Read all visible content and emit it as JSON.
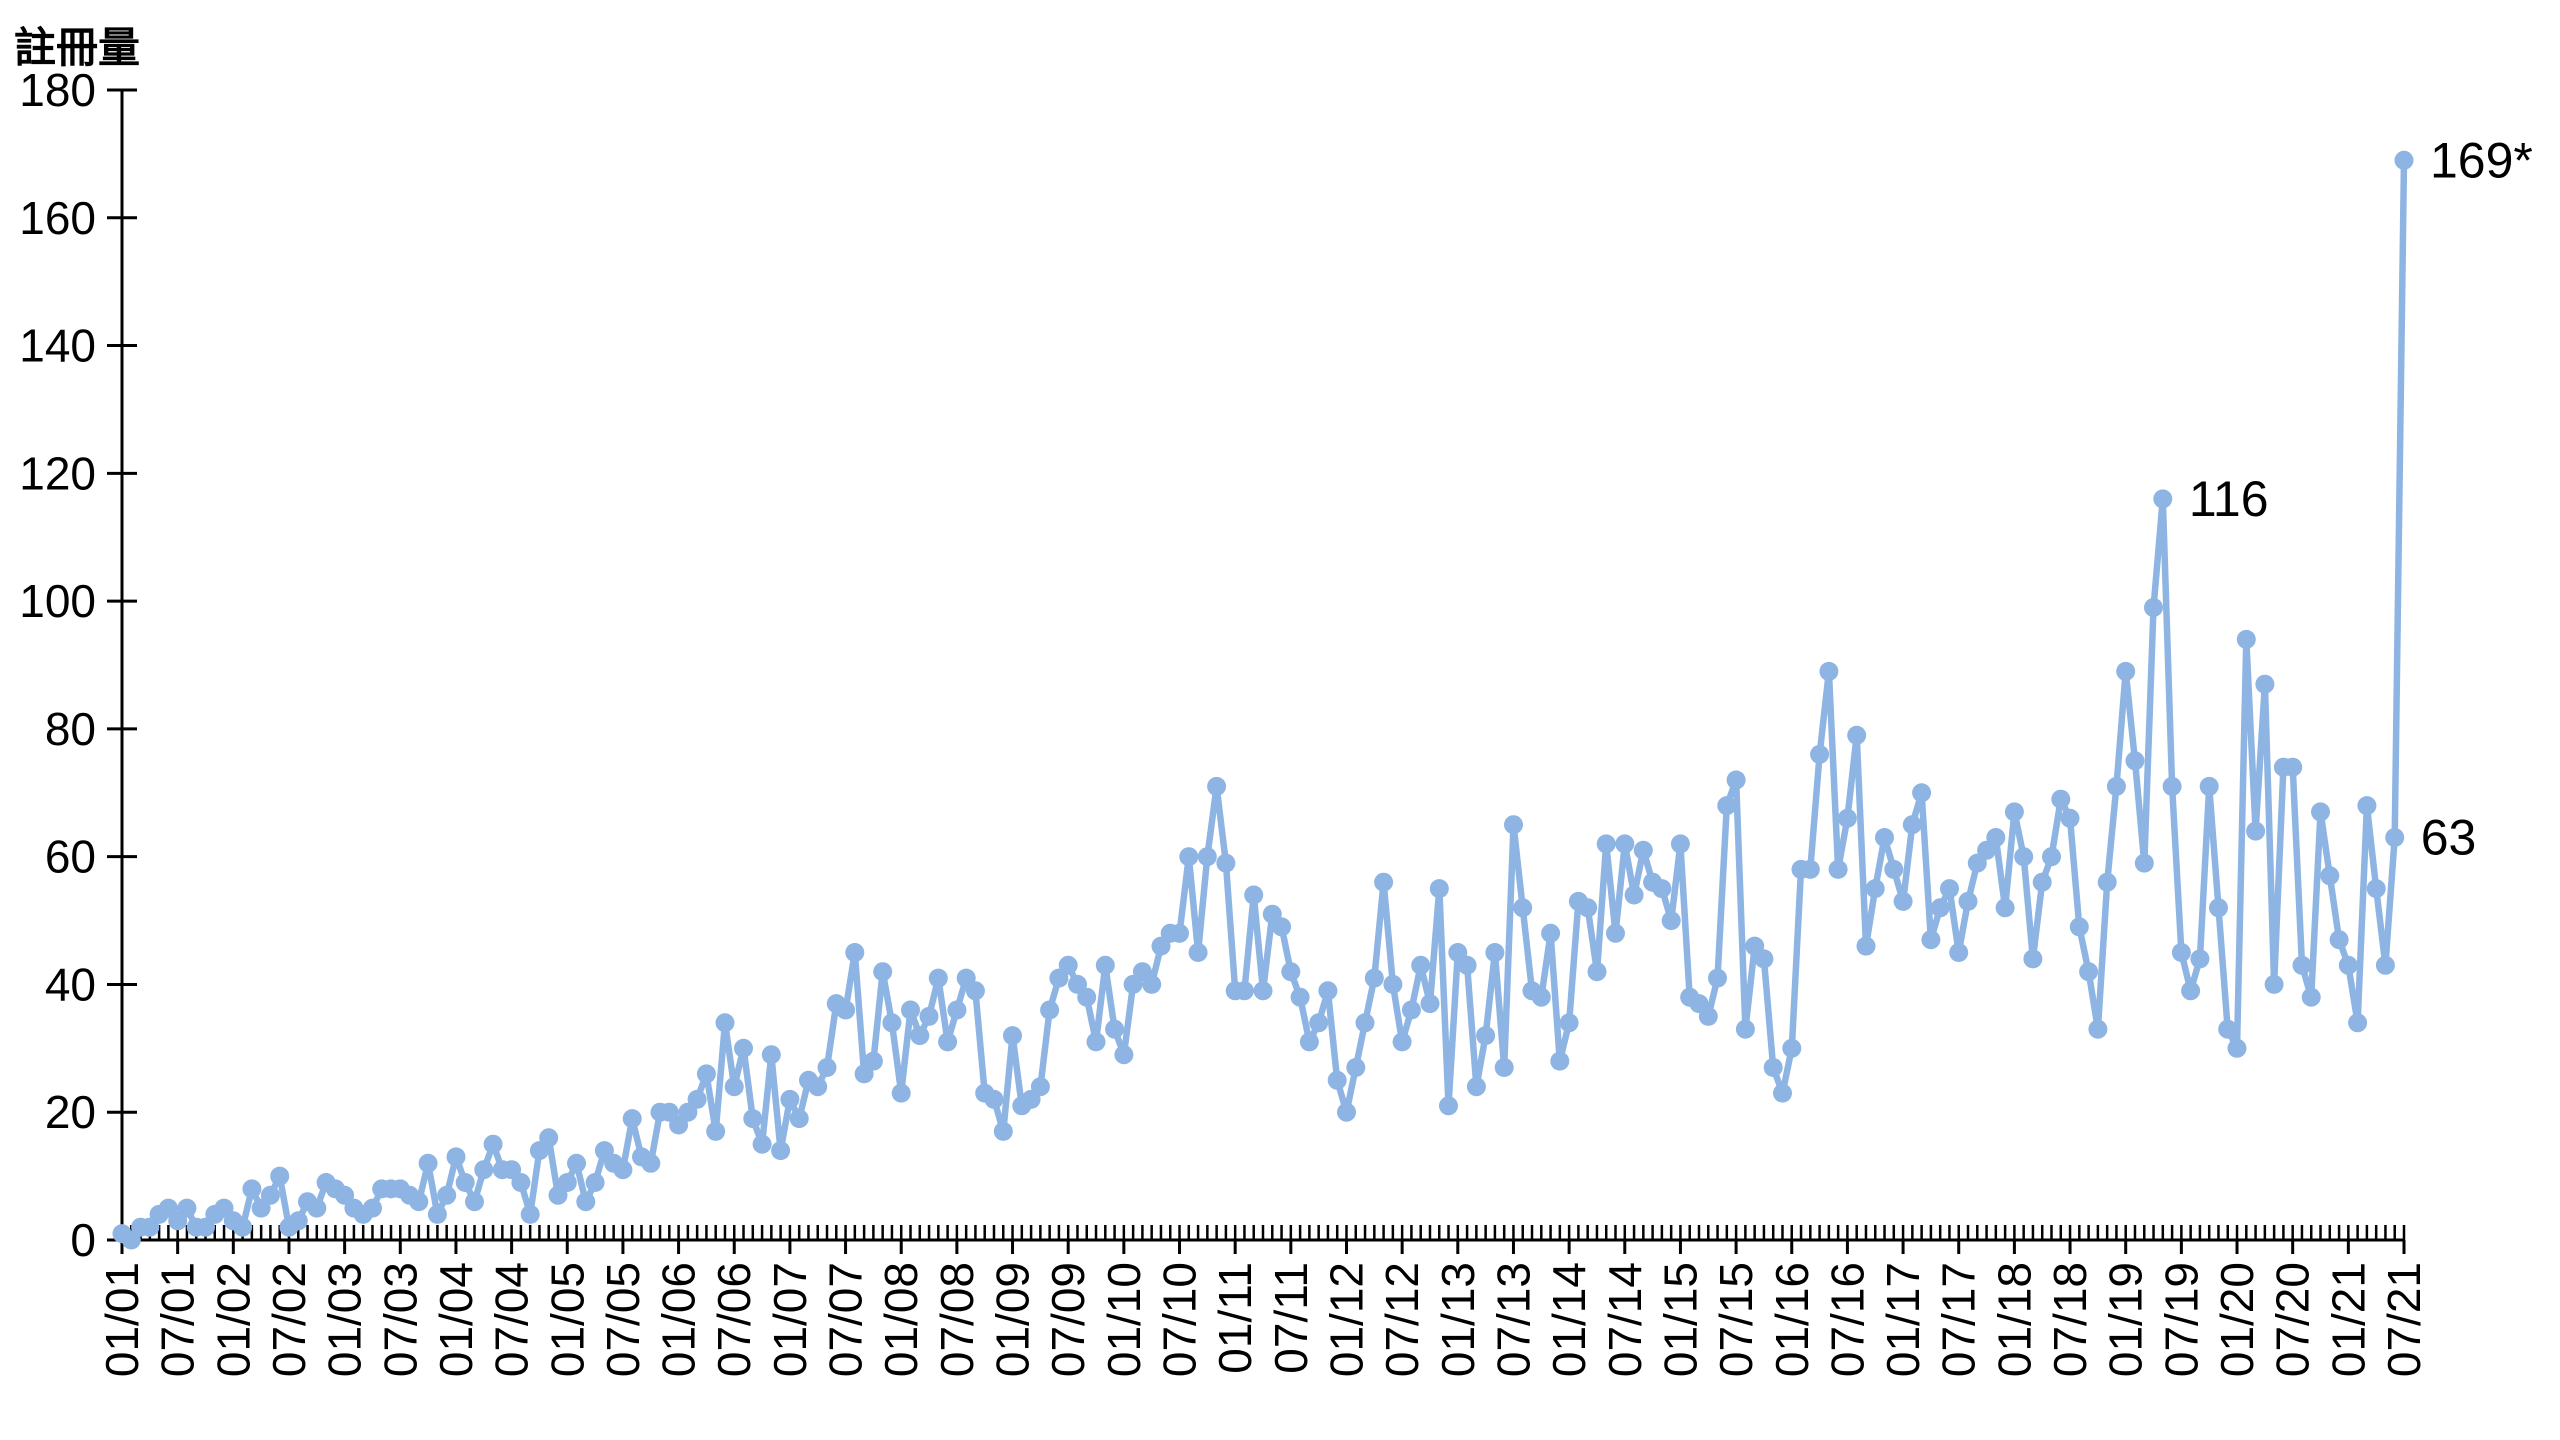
{
  "title": "註冊量",
  "colors": {
    "series": "#8DB4E2",
    "axis": "#000000",
    "text": "#000000"
  },
  "y_axis": {
    "min": 0,
    "max": 180,
    "step": 20,
    "tick_labels": [
      "0",
      "20",
      "40",
      "60",
      "80",
      "100",
      "120",
      "140",
      "160",
      "180"
    ]
  },
  "x_axis": {
    "tick_labels": [
      "01/01",
      "07/01",
      "01/02",
      "07/02",
      "01/03",
      "07/03",
      "01/04",
      "07/04",
      "01/05",
      "07/05",
      "01/06",
      "07/06",
      "01/07",
      "07/07",
      "01/08",
      "07/08",
      "01/09",
      "07/09",
      "01/10",
      "07/10",
      "01/11",
      "07/11",
      "01/12",
      "07/12",
      "01/13",
      "07/13",
      "01/14",
      "07/14",
      "01/15",
      "07/15",
      "01/16",
      "07/16",
      "01/17",
      "07/17",
      "01/18",
      "07/18",
      "01/19",
      "07/19",
      "01/20",
      "07/20",
      "01/21",
      "07/21"
    ],
    "months_per_tick": 6
  },
  "chart_data": {
    "type": "line",
    "title": "註冊量",
    "xlabel": "",
    "ylabel": "註冊量",
    "ylim": [
      0,
      180
    ],
    "grid": false,
    "legend": "none",
    "x_start": "01/2001",
    "x_end": "07/2021",
    "frequency": "monthly",
    "series": [
      {
        "name": "註冊量",
        "values": [
          1,
          0,
          2,
          2,
          4,
          5,
          3,
          5,
          2,
          2,
          4,
          5,
          3,
          2,
          8,
          5,
          7,
          10,
          2,
          3,
          6,
          5,
          9,
          8,
          7,
          5,
          4,
          5,
          8,
          8,
          8,
          7,
          6,
          12,
          4,
          7,
          13,
          9,
          6,
          11,
          15,
          11,
          11,
          9,
          4,
          14,
          16,
          7,
          9,
          12,
          6,
          9,
          14,
          12,
          11,
          19,
          13,
          12,
          20,
          20,
          18,
          20,
          22,
          26,
          17,
          34,
          24,
          30,
          19,
          15,
          29,
          14,
          22,
          19,
          25,
          24,
          27,
          37,
          36,
          45,
          26,
          28,
          42,
          34,
          23,
          36,
          32,
          35,
          41,
          31,
          36,
          41,
          39,
          23,
          22,
          17,
          32,
          21,
          22,
          24,
          36,
          41,
          43,
          40,
          38,
          31,
          43,
          33,
          29,
          40,
          42,
          40,
          46,
          48,
          48,
          60,
          45,
          60,
          71,
          59,
          39,
          39,
          54,
          39,
          51,
          49,
          42,
          38,
          31,
          34,
          39,
          25,
          20,
          27,
          34,
          41,
          56,
          40,
          31,
          36,
          43,
          37,
          55,
          21,
          45,
          43,
          24,
          32,
          45,
          27,
          65,
          52,
          39,
          38,
          48,
          28,
          34,
          53,
          52,
          42,
          62,
          48,
          62,
          54,
          61,
          56,
          55,
          50,
          62,
          38,
          37,
          35,
          41,
          68,
          72,
          33,
          46,
          44,
          27,
          23,
          30,
          58,
          58,
          76,
          89,
          58,
          66,
          79,
          46,
          55,
          63,
          58,
          53,
          65,
          70,
          47,
          52,
          55,
          45,
          53,
          59,
          61,
          63,
          52,
          67,
          60,
          44,
          56,
          60,
          69,
          66,
          49,
          42,
          33,
          56,
          71,
          89,
          75,
          59,
          99,
          116,
          71,
          45,
          39,
          44,
          71,
          52,
          33,
          30,
          94,
          64,
          87,
          40,
          74,
          74,
          43,
          38,
          67,
          57,
          47,
          43,
          34,
          68,
          55,
          43,
          63,
          169
        ]
      }
    ],
    "annotations": [
      {
        "text": "116",
        "month_index": 220,
        "value": 116
      },
      {
        "text": "63",
        "month_index": 245,
        "value": 63
      },
      {
        "text": "169*",
        "month_index": 246,
        "value": 169
      }
    ]
  }
}
